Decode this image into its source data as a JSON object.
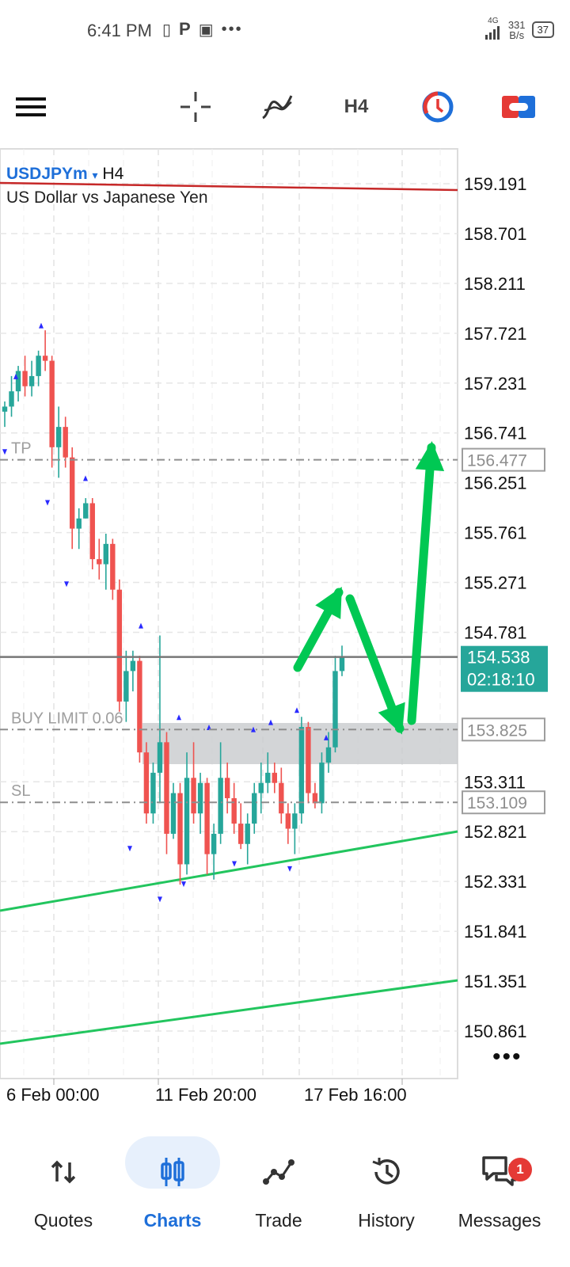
{
  "status": {
    "time": "6:41 PM",
    "net_speed_value": "331",
    "net_speed_unit": "B/s",
    "network_type": "4G",
    "battery": "37"
  },
  "toolbar": {
    "menu_icon": "hamburger-menu-icon",
    "crosshair_icon": "crosshair-icon",
    "indicators_icon": "indicators-icon",
    "timeframe": "H4",
    "clock_icon": "clock-icon",
    "trade_icon": "one-click-trade-icon"
  },
  "chart": {
    "symbol": "USDJPYm",
    "dropdown_glyph": "▾",
    "timeframe": "H4",
    "description": "US Dollar vs Japanese Yen",
    "levels": {
      "tp_label": "TP",
      "tp_price": "156.477",
      "buy_limit_label": "BUY LIMIT 0.06",
      "buy_limit_price": "153.825",
      "sl_label": "SL",
      "sl_price": "153.109"
    },
    "current_price": "154.538",
    "countdown": "02:18:10",
    "more_label": "•••",
    "colors": {
      "bull": "#26a69a",
      "bear": "#ef5350",
      "trendline": "#22c55e",
      "arrow": "#00c853",
      "current_price_bg": "#26a69a",
      "ask_line": "#c62828"
    }
  },
  "chart_data": {
    "type": "candlestick",
    "y_ticks": [
      "159.191",
      "158.701",
      "158.211",
      "157.721",
      "157.231",
      "156.741",
      "156.251",
      "155.761",
      "155.271",
      "154.781",
      "153.311",
      "152.821",
      "152.331",
      "151.841",
      "151.351",
      "150.861"
    ],
    "x_ticks": [
      "6 Feb 00:00",
      "11 Feb 20:00",
      "17 Feb 16:00"
    ],
    "ylim": [
      150.6,
      159.45
    ],
    "candles": [
      [
        156.95,
        157.05,
        156.8,
        157.0
      ],
      [
        157.0,
        157.3,
        156.9,
        157.15
      ],
      [
        157.15,
        157.4,
        157.05,
        157.35
      ],
      [
        157.35,
        157.5,
        157.1,
        157.2
      ],
      [
        157.2,
        157.45,
        157.1,
        157.3
      ],
      [
        157.3,
        157.55,
        157.2,
        157.5
      ],
      [
        157.5,
        157.75,
        157.35,
        157.45
      ],
      [
        157.45,
        157.5,
        156.4,
        156.6
      ],
      [
        156.6,
        157.0,
        156.3,
        156.8
      ],
      [
        156.8,
        156.9,
        156.4,
        156.5
      ],
      [
        156.5,
        156.6,
        155.6,
        155.8
      ],
      [
        155.8,
        156.0,
        155.6,
        155.9
      ],
      [
        155.9,
        156.1,
        155.9,
        156.05
      ],
      [
        156.05,
        156.1,
        155.4,
        155.5
      ],
      [
        155.5,
        155.7,
        155.3,
        155.45
      ],
      [
        155.45,
        155.75,
        155.2,
        155.65
      ],
      [
        155.65,
        155.7,
        155.1,
        155.2
      ],
      [
        155.2,
        155.3,
        154.0,
        154.1
      ],
      [
        154.1,
        154.6,
        153.9,
        154.4
      ],
      [
        154.4,
        154.6,
        154.2,
        154.5
      ],
      [
        154.5,
        154.55,
        153.5,
        153.6
      ],
      [
        153.6,
        153.7,
        152.9,
        153.0
      ],
      [
        153.0,
        153.5,
        152.9,
        153.4
      ],
      [
        153.4,
        154.75,
        153.1,
        153.7
      ],
      [
        153.7,
        153.8,
        152.6,
        152.8
      ],
      [
        152.8,
        153.3,
        152.75,
        153.2
      ],
      [
        153.2,
        153.3,
        152.3,
        152.5
      ],
      [
        152.5,
        153.6,
        152.4,
        153.35
      ],
      [
        153.35,
        153.7,
        152.9,
        153.0
      ],
      [
        153.0,
        153.4,
        152.8,
        153.3
      ],
      [
        153.3,
        153.35,
        152.4,
        152.6
      ],
      [
        152.6,
        152.9,
        152.35,
        152.8
      ],
      [
        152.8,
        153.7,
        152.7,
        153.35
      ],
      [
        153.35,
        153.5,
        153.0,
        153.15
      ],
      [
        153.15,
        153.3,
        152.8,
        152.9
      ],
      [
        152.9,
        153.1,
        152.65,
        152.7
      ],
      [
        152.7,
        153.0,
        152.5,
        152.9
      ],
      [
        152.9,
        153.3,
        152.8,
        153.2
      ],
      [
        153.2,
        153.5,
        153.0,
        153.3
      ],
      [
        153.3,
        153.6,
        153.2,
        153.4
      ],
      [
        153.4,
        153.5,
        153.2,
        153.3
      ],
      [
        153.3,
        153.45,
        152.9,
        153.0
      ],
      [
        153.0,
        153.1,
        152.7,
        152.85
      ],
      [
        152.85,
        153.1,
        152.6,
        153.0
      ],
      [
        153.0,
        153.95,
        152.9,
        153.85
      ],
      [
        153.85,
        153.9,
        153.1,
        153.2
      ],
      [
        153.2,
        153.3,
        153.05,
        153.1
      ],
      [
        153.1,
        153.6,
        153.0,
        153.5
      ],
      [
        153.5,
        153.8,
        153.4,
        153.65
      ],
      [
        153.65,
        154.55,
        153.6,
        154.4
      ],
      [
        154.4,
        154.65,
        154.35,
        154.54
      ]
    ],
    "horizontal_levels": [
      156.477,
      153.825,
      153.109,
      154.538
    ]
  }
}
